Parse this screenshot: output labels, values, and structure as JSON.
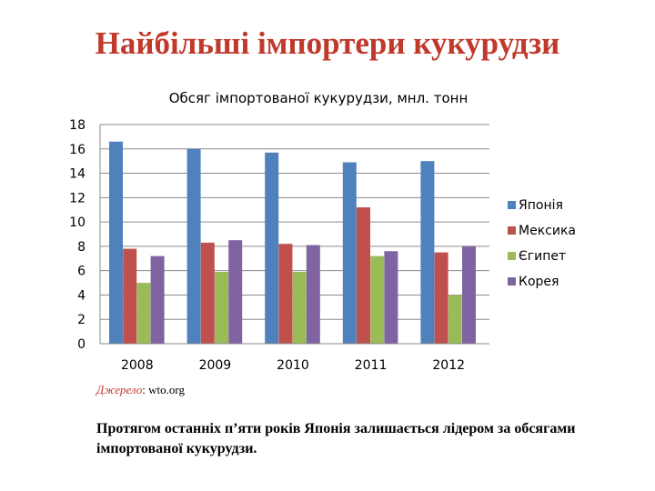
{
  "slide": {
    "title": "Найбільші імпортери кукурудзи",
    "source_label": "Джерело",
    "source_value": ": wto.org",
    "caption": "Протягом останніх п’яти років Японія залишається лідером за обсягами імпортованої кукурудзи."
  },
  "chart_data": {
    "type": "bar",
    "title": "Обсяг імпортованої кукурудзи, мнл. тонн",
    "xlabel": "",
    "ylabel": "",
    "categories": [
      "2008",
      "2009",
      "2010",
      "2011",
      "2012"
    ],
    "ylim": [
      0,
      18
    ],
    "yticks": [
      0,
      2,
      4,
      6,
      8,
      10,
      12,
      14,
      16,
      18
    ],
    "grid": true,
    "legend_position": "right",
    "series": [
      {
        "name": "Японія",
        "color": "#4f81bd",
        "values": [
          16.6,
          16.0,
          15.7,
          14.9,
          15.0
        ]
      },
      {
        "name": "Мексика",
        "color": "#c0504d",
        "values": [
          7.8,
          8.3,
          8.2,
          11.2,
          7.5
        ]
      },
      {
        "name": "Єгипет",
        "color": "#9bbb59",
        "values": [
          5.0,
          5.9,
          5.9,
          7.2,
          4.0
        ]
      },
      {
        "name": "Корея",
        "color": "#8064a2",
        "values": [
          7.2,
          8.5,
          8.1,
          7.6,
          8.0
        ]
      }
    ]
  }
}
